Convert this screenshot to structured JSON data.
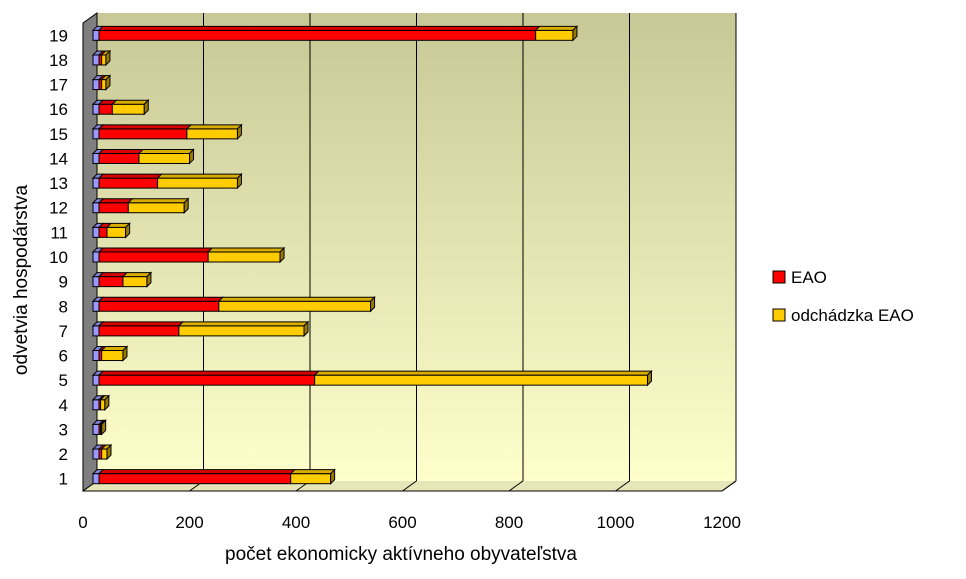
{
  "chart_data": {
    "type": "bar",
    "orientation": "horizontal",
    "stacked": true,
    "three_d": true,
    "title": "",
    "xlabel": "počet ekonomicky aktívneho obyvateľstva",
    "ylabel": "odvetvia hospodárstva",
    "categories": [
      "1",
      "2",
      "3",
      "4",
      "5",
      "6",
      "7",
      "8",
      "9",
      "10",
      "11",
      "12",
      "13",
      "14",
      "15",
      "16",
      "17",
      "18",
      "19"
    ],
    "xlim": [
      0,
      1200
    ],
    "xticks": [
      "0",
      "200",
      "400",
      "600",
      "800",
      "1000",
      "1200"
    ],
    "grid": true,
    "legend_position": "right",
    "series": [
      {
        "name": "",
        "color": "#9999ff",
        "values": [
          0,
          0,
          0,
          0,
          0,
          0,
          0,
          0,
          0,
          0,
          0,
          0,
          0,
          0,
          0,
          0,
          0,
          0,
          0
        ]
      },
      {
        "name": "EAO",
        "color": "#ff0000",
        "values": [
          360,
          5,
          3,
          3,
          405,
          5,
          150,
          225,
          45,
          205,
          15,
          55,
          110,
          75,
          165,
          25,
          5,
          5,
          820
        ]
      },
      {
        "name": "odchádzka EAO",
        "color": "#ffcc00",
        "values": [
          75,
          10,
          2,
          8,
          625,
          40,
          235,
          285,
          45,
          135,
          35,
          105,
          150,
          95,
          95,
          60,
          8,
          8,
          70
        ]
      }
    ],
    "colors": {
      "wall_top": "#c8c897",
      "wall_bottom": "#ffffcc",
      "side_wall": "#7f7f7f",
      "grid": "#000000"
    }
  }
}
